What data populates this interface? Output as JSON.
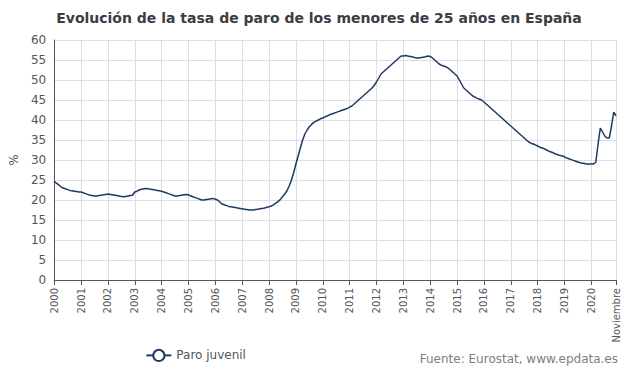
{
  "chart_data": {
    "type": "line",
    "title": "Evolución de la tasa de paro de los menores de 25 años en España",
    "ylabel": "%",
    "annotations": [
      "Fuente: Eurostat, www.epdata.es"
    ],
    "ylim": [
      0,
      60
    ],
    "yticks": [
      0,
      5,
      10,
      15,
      20,
      25,
      30,
      35,
      40,
      45,
      50,
      55,
      60
    ],
    "grid": true,
    "legend": "bottom",
    "categories": [
      "2000",
      null,
      null,
      null,
      null,
      null,
      null,
      null,
      null,
      null,
      null,
      null,
      "2001",
      null,
      null,
      null,
      null,
      null,
      null,
      null,
      null,
      null,
      null,
      null,
      "2002",
      null,
      null,
      null,
      null,
      null,
      null,
      null,
      null,
      null,
      null,
      null,
      "2003",
      null,
      null,
      null,
      null,
      null,
      null,
      null,
      null,
      null,
      null,
      null,
      "2004",
      null,
      null,
      null,
      null,
      null,
      null,
      null,
      null,
      null,
      null,
      null,
      "2005",
      null,
      null,
      null,
      null,
      null,
      null,
      null,
      null,
      null,
      null,
      null,
      "2006",
      null,
      null,
      null,
      null,
      null,
      null,
      null,
      null,
      null,
      null,
      null,
      "2007",
      null,
      null,
      null,
      null,
      null,
      null,
      null,
      null,
      null,
      null,
      null,
      "2008",
      null,
      null,
      null,
      null,
      null,
      null,
      null,
      null,
      null,
      null,
      null,
      "2009",
      null,
      null,
      null,
      null,
      null,
      null,
      null,
      null,
      null,
      null,
      null,
      "2010",
      null,
      null,
      null,
      null,
      null,
      null,
      null,
      null,
      null,
      null,
      null,
      "2011",
      null,
      null,
      null,
      null,
      null,
      null,
      null,
      null,
      null,
      null,
      null,
      "2012",
      null,
      null,
      null,
      null,
      null,
      null,
      null,
      null,
      null,
      null,
      null,
      "2013",
      null,
      null,
      null,
      null,
      null,
      null,
      null,
      null,
      null,
      null,
      null,
      "2014",
      null,
      null,
      null,
      null,
      null,
      null,
      null,
      null,
      null,
      null,
      null,
      "2015",
      null,
      null,
      null,
      null,
      null,
      null,
      null,
      null,
      null,
      null,
      null,
      "2016",
      null,
      null,
      null,
      null,
      null,
      null,
      null,
      null,
      null,
      null,
      null,
      "2017",
      null,
      null,
      null,
      null,
      null,
      null,
      null,
      null,
      null,
      null,
      null,
      "2018",
      null,
      null,
      null,
      null,
      null,
      null,
      null,
      null,
      null,
      null,
      null,
      "2019",
      null,
      null,
      null,
      null,
      null,
      null,
      null,
      null,
      null,
      null,
      null,
      "2020",
      null,
      null,
      null,
      null,
      null,
      null,
      null,
      null,
      null,
      null,
      "Noviembre"
    ],
    "series": [
      {
        "name": "Paro juvenil",
        "color": "#1f3864",
        "values": [
          24.7,
          24.2,
          23.8,
          23.3,
          23.0,
          22.8,
          22.6,
          22.4,
          22.3,
          22.2,
          22.1,
          22.0,
          22.0,
          21.8,
          21.6,
          21.4,
          21.2,
          21.1,
          21.0,
          21.0,
          21.1,
          21.2,
          21.3,
          21.4,
          21.5,
          21.4,
          21.3,
          21.2,
          21.1,
          21.0,
          20.9,
          20.8,
          20.9,
          21.0,
          21.1,
          21.2,
          22.0,
          22.2,
          22.5,
          22.7,
          22.8,
          22.9,
          22.8,
          22.7,
          22.6,
          22.5,
          22.4,
          22.3,
          22.2,
          22.0,
          21.8,
          21.6,
          21.4,
          21.2,
          21.0,
          21.0,
          21.1,
          21.2,
          21.3,
          21.4,
          21.3,
          21.0,
          20.8,
          20.6,
          20.4,
          20.2,
          20.0,
          20.0,
          20.1,
          20.2,
          20.3,
          20.4,
          20.2,
          20.0,
          19.5,
          19.0,
          18.8,
          18.6,
          18.4,
          18.3,
          18.2,
          18.1,
          18.0,
          17.9,
          17.8,
          17.7,
          17.6,
          17.5,
          17.5,
          17.5,
          17.6,
          17.7,
          17.8,
          17.9,
          18.0,
          18.2,
          18.3,
          18.5,
          18.8,
          19.2,
          19.6,
          20.1,
          20.8,
          21.5,
          22.3,
          23.5,
          25.0,
          26.8,
          29.0,
          31.0,
          33.0,
          35.0,
          36.5,
          37.5,
          38.3,
          38.9,
          39.4,
          39.7,
          40.0,
          40.3,
          40.5,
          40.8,
          41.0,
          41.3,
          41.5,
          41.7,
          41.9,
          42.1,
          42.3,
          42.5,
          42.7,
          42.9,
          43.2,
          43.5,
          44.0,
          44.5,
          45.0,
          45.5,
          46.0,
          46.5,
          47.0,
          47.5,
          48.0,
          48.7,
          49.5,
          50.5,
          51.5,
          52.0,
          52.5,
          53.0,
          53.5,
          54.0,
          54.5,
          55.0,
          55.5,
          56.0,
          56.0,
          56.1,
          56.0,
          55.9,
          55.8,
          55.6,
          55.5,
          55.5,
          55.6,
          55.7,
          55.8,
          56.0,
          55.9,
          55.5,
          55.0,
          54.5,
          54.0,
          53.7,
          53.5,
          53.3,
          53.0,
          52.5,
          52.0,
          51.5,
          51.0,
          50.0,
          49.0,
          48.0,
          47.5,
          47.0,
          46.5,
          46.0,
          45.7,
          45.4,
          45.2,
          45.0,
          44.5,
          44.0,
          43.5,
          43.0,
          42.5,
          42.0,
          41.5,
          41.0,
          40.5,
          40.0,
          39.5,
          39.0,
          38.5,
          38.0,
          37.5,
          37.0,
          36.5,
          36.0,
          35.5,
          35.0,
          34.5,
          34.2,
          34.0,
          33.8,
          33.5,
          33.2,
          33.0,
          32.8,
          32.5,
          32.2,
          32.0,
          31.8,
          31.5,
          31.3,
          31.1,
          31.0,
          30.8,
          30.5,
          30.3,
          30.1,
          29.9,
          29.7,
          29.5,
          29.3,
          29.2,
          29.1,
          29.0,
          29.0,
          29.0,
          29.0,
          29.5,
          34.0,
          38.0,
          37.0,
          36.0,
          35.5,
          35.5,
          38.5,
          42.0,
          41.0
        ]
      }
    ]
  }
}
